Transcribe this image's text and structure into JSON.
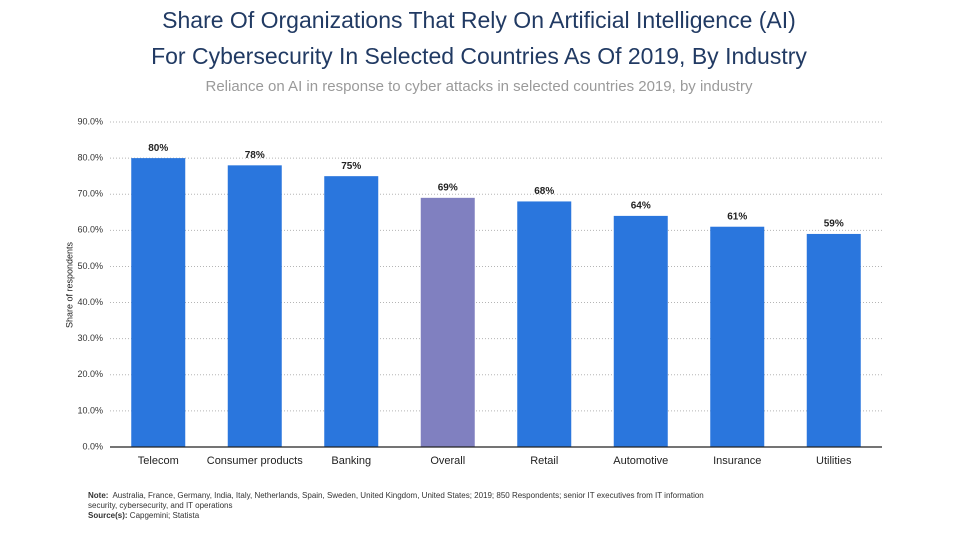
{
  "chart_data": {
    "type": "bar",
    "title": [
      "Share Of Organizations That Rely On Artificial Intelligence (AI)",
      "For Cybersecurity In Selected Countries As Of 2019, By Industry"
    ],
    "subtitle": "Reliance on AI in response to cyber attacks in selected countries 2019, by industry",
    "y_label": "Share of respondents",
    "categories": [
      "Telecom",
      "Consumer products",
      "Banking",
      "Overall",
      "Retail",
      "Automotive",
      "Insurance",
      "Utilities"
    ],
    "values": [
      80,
      78,
      75,
      69,
      68,
      64,
      61,
      59
    ],
    "value_labels": [
      "80%",
      "78%",
      "75%",
      "69%",
      "68%",
      "64%",
      "61%",
      "59%"
    ],
    "colors": [
      "#2a76dd",
      "#2a76dd",
      "#2a76dd",
      "#8080c0",
      "#2a76dd",
      "#2a76dd",
      "#2a76dd",
      "#2a76dd"
    ],
    "ylim": [
      0,
      90
    ],
    "yticks": [
      {
        "value": 0,
        "label": "0.0%"
      },
      {
        "value": 10,
        "label": "10.0%"
      },
      {
        "value": 20,
        "label": "20.0%"
      },
      {
        "value": 30,
        "label": "30.0%"
      },
      {
        "value": 40,
        "label": "40.0%"
      },
      {
        "value": 50,
        "label": "50.0%"
      },
      {
        "value": 60,
        "label": "60.0%"
      },
      {
        "value": 70,
        "label": "70.0%"
      },
      {
        "value": 80,
        "label": "80.0%"
      },
      {
        "value": 90,
        "label": "90.0%"
      }
    ],
    "grid": true,
    "notes": {
      "note_label": "Note:",
      "note": "Australia, France, Germany, India, Italy, Netherlands, Spain, Sweden, United Kingdom, United States; 2019; 850 Respondents; senior IT executives from IT information security, cybersecurity, and IT operations",
      "source_label": "Source(s):",
      "source": "Capgemini; Statista"
    }
  }
}
